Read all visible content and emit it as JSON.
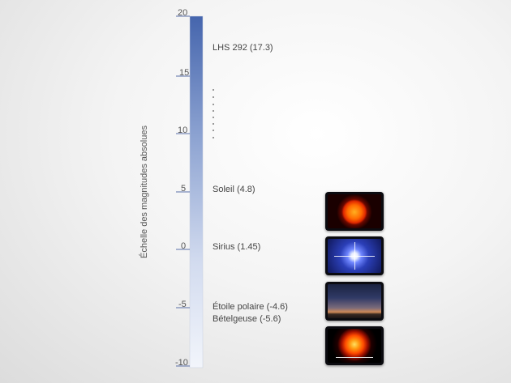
{
  "axis_title": "Échelle des magnitudes absolues",
  "ticks": [
    "20",
    "15",
    "10",
    "5",
    "0",
    "-5",
    "-10"
  ],
  "labels": {
    "lhs292": "LHS 292 (17.3)",
    "soleil": "Soleil (4.8)",
    "sirius": "Sirius (1.45)",
    "polaire": "Étoile polaire (-4.6)",
    "betelgeuse": "Bételgeuse (-5.6)"
  },
  "colors": {
    "bar_top": "#4a6cb0",
    "bar_bottom": "#eef2fa",
    "tick": "#5a6fa8"
  },
  "images": [
    "sun-image",
    "sirius-image",
    "polaris-night-sky-image",
    "betelgeuse-image"
  ]
}
